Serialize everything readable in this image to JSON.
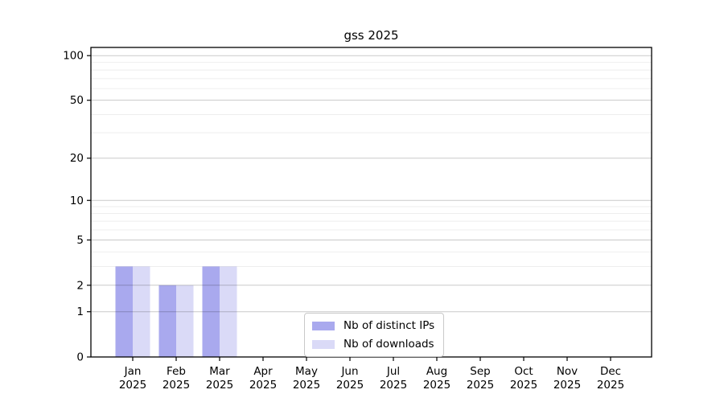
{
  "chart_data": {
    "type": "bar",
    "title": "gss 2025",
    "categories": [
      "Jan",
      "Feb",
      "Mar",
      "Apr",
      "May",
      "Jun",
      "Jul",
      "Aug",
      "Sep",
      "Oct",
      "Nov",
      "Dec"
    ],
    "category_sublabel": "2025",
    "series": [
      {
        "name": "Nb of distinct IPs",
        "color": "#a9a9ee",
        "values": [
          3,
          2,
          3,
          0,
          0,
          0,
          0,
          0,
          0,
          0,
          0,
          0
        ]
      },
      {
        "name": "Nb of downloads",
        "color": "#dadaf7",
        "values": [
          3,
          2,
          3,
          0,
          0,
          0,
          0,
          0,
          0,
          0,
          0,
          0
        ]
      }
    ],
    "xlabel": "",
    "ylabel": "",
    "y_axis": {
      "scale": "log10(value+1)",
      "major_ticks": [
        0,
        1,
        2,
        5,
        10,
        20,
        50,
        100
      ],
      "minor_ticks": [
        3,
        4,
        6,
        7,
        8,
        9,
        30,
        40,
        60,
        70,
        80,
        90
      ],
      "ylim": [
        0,
        107
      ]
    },
    "grid": {
      "enabled": true,
      "major_color": "#cccccc",
      "minor_color": "#ececec"
    },
    "legend": {
      "position": "inside-bottom-center"
    },
    "axis_color": "#000000",
    "background_color": "#ffffff"
  }
}
